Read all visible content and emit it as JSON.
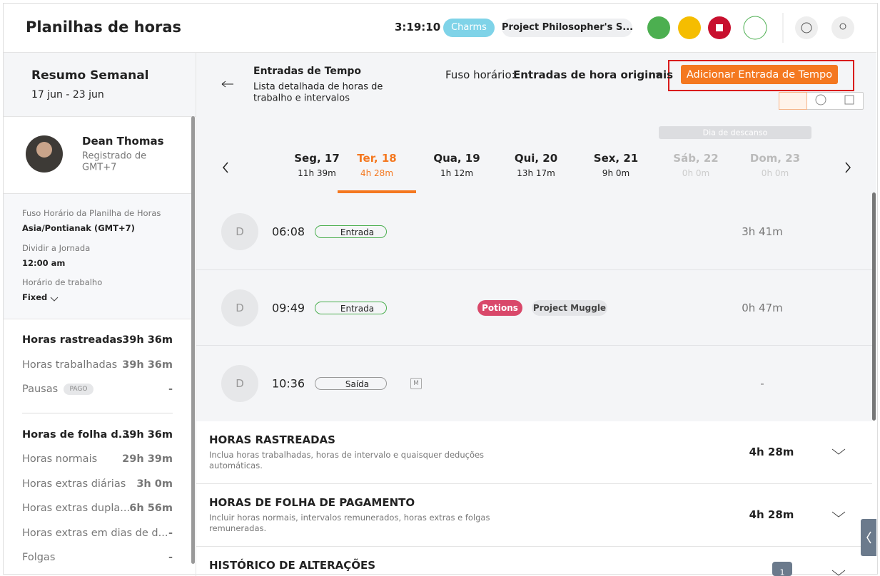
{
  "header": {
    "title": "Planilhas de horas",
    "timer": "3:19:10",
    "task": "Charms",
    "project": "Project Philosopher's S..."
  },
  "sidebar": {
    "title": "Resumo Semanal",
    "range": "17 jun - 23 jun",
    "user": {
      "name": "Dean Thomas",
      "registered": [
        "Registrado de",
        "GMT+7"
      ]
    },
    "settings": [
      {
        "label": "Fuso Horário da Planilha de Horas",
        "value": "Asia/Pontianak (GMT+7)"
      },
      {
        "label": "Dividir a Jornada",
        "value": "12:00 am"
      },
      {
        "label": "Horário de trabalho",
        "value": "Fixed"
      }
    ],
    "summary": [
      {
        "label": "Horas rastreadas",
        "value": "39h 36m"
      },
      {
        "label": "Horas trabalhadas",
        "value": "39h 36m"
      },
      {
        "label": "Pausas",
        "badge": "PAGO",
        "value": "-"
      }
    ],
    "payroll": [
      {
        "label": "Horas de folha d...",
        "value": "39h 36m"
      },
      {
        "label": "Horas normais",
        "value": "29h 39m"
      },
      {
        "label": "Horas extras diárias",
        "value": "3h 0m"
      },
      {
        "label": "Horas extras dupla...",
        "value": "6h 56m"
      },
      {
        "label": "Horas extras em dias de d...",
        "value": "-"
      },
      {
        "label": "Folgas",
        "value": "-"
      }
    ]
  },
  "entries_header": {
    "title": "Entradas de Tempo",
    "subtitle": [
      "Lista detalhada de horas de",
      "trabalho e intervalos"
    ],
    "timezone_label": "Fuso horário:",
    "timezone_value": "Entradas de hora originais",
    "add_button": "Adicionar Entrada de Tempo",
    "rest_day": "Dia de descanso"
  },
  "days": [
    {
      "day": "Seg, 17",
      "hours": "11h 39m"
    },
    {
      "day": "Ter, 18",
      "hours": "4h 28m",
      "selected": true
    },
    {
      "day": "Qua, 19",
      "hours": "1h 12m"
    },
    {
      "day": "Qui, 20",
      "hours": "13h 17m"
    },
    {
      "day": "Sex, 21",
      "hours": "9h 0m"
    },
    {
      "day": "Sáb, 22",
      "hours": "0h 0m",
      "rest": true
    },
    {
      "day": "Dom, 23",
      "hours": "0h 0m",
      "rest": true
    }
  ],
  "entries": [
    {
      "avatar": "D",
      "time": "06:08",
      "type": "Entrada",
      "duration": "3h 41m"
    },
    {
      "avatar": "D",
      "time": "09:49",
      "type": "Entrada",
      "task": "Potions",
      "project": "Project Muggle",
      "duration": "0h 47m"
    },
    {
      "avatar": "D",
      "time": "10:36",
      "type": "Saída",
      "badge": "M",
      "duration": "-"
    }
  ],
  "sections": [
    {
      "title": "HORAS RASTREADAS",
      "description": [
        "Inclua horas trabalhadas, horas de intervalo e quaisquer deduções",
        "automáticas."
      ],
      "value": "4h 28m"
    },
    {
      "title": "HORAS DE FOLHA DE PAGAMENTO",
      "description": [
        "Incluir horas normais, intervalos remunerados, horas extras e folgas",
        "remuneradas."
      ],
      "value": "4h 28m"
    },
    {
      "title": "HISTÓRICO DE ALTERAÇÕES",
      "count": "1"
    }
  ]
}
